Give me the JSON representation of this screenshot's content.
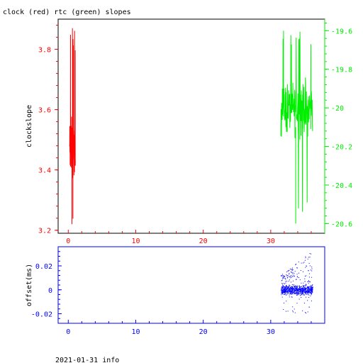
{
  "page": {
    "title": "clock (red) rtc (green) slopes",
    "footer": "2021-01-31 info"
  },
  "colors": {
    "background": "#ffffff",
    "frame": "#000000",
    "clock": "#ff0000",
    "rtc": "#00ee00",
    "offset": "#0000ff"
  },
  "chart_data": [
    {
      "type": "line",
      "title": "clock (red) rtc (green) slopes",
      "ylabel": "clockslope",
      "xlim": [
        -1.5,
        38
      ],
      "x_ticks": [
        0,
        10,
        20,
        30
      ],
      "x_tick_labels": [
        "0",
        "10",
        "20",
        "30"
      ],
      "ylim_left": [
        3.19,
        3.9
      ],
      "y_left_ticks": [
        3.2,
        3.4,
        3.6,
        3.8
      ],
      "y_left_tick_labels": [
        "3.2",
        "3.4",
        "3.6",
        "3.8"
      ],
      "ylim_right": [
        -20.65,
        -19.54
      ],
      "y_right_ticks": [
        -19.6,
        -19.8,
        -20,
        -20.2,
        -20.4,
        -20.6
      ],
      "y_right_tick_labels": [
        "-19.6",
        "-19.8",
        "-20",
        "-20.2",
        "-20.4",
        "-20.6"
      ],
      "grid": false,
      "series": [
        {
          "name": "clock",
          "axis": "left",
          "x_range": [
            0.2,
            1.05
          ],
          "y_min": 3.22,
          "y_max": 3.87,
          "y_typical": [
            3.37,
            3.58
          ]
        },
        {
          "name": "rtc",
          "axis": "right",
          "x_range": [
            31.5,
            36.2
          ],
          "y_min": -20.6,
          "y_max": -19.6,
          "y_typical": [
            -20.15,
            -19.85
          ]
        }
      ]
    },
    {
      "type": "scatter",
      "ylabel": "offset(ms)",
      "xlim": [
        -1.5,
        38
      ],
      "x_ticks": [
        0,
        10,
        20,
        30
      ],
      "x_tick_labels": [
        "0",
        "10",
        "20",
        "30"
      ],
      "ylim": [
        -0.028,
        0.036
      ],
      "y_ticks": [
        -0.02,
        0,
        0.02
      ],
      "y_tick_labels": [
        "-0.02",
        "0",
        "0.02"
      ],
      "grid": false,
      "series": [
        {
          "name": "offset",
          "x_range": [
            31.5,
            36.2
          ],
          "y_min": -0.02,
          "y_max": 0.033,
          "y_typical": [
            -0.004,
            0.004
          ]
        }
      ]
    }
  ]
}
